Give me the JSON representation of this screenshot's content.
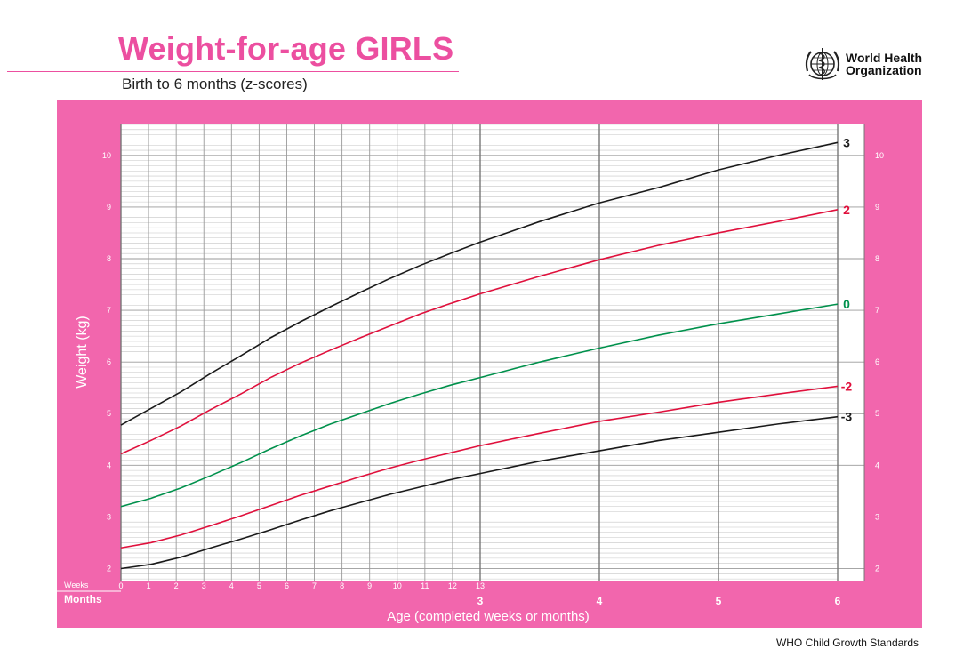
{
  "header": {
    "title": "Weight-for-age GIRLS",
    "subtitle": "Birth to 6 months (z-scores)"
  },
  "org": {
    "name_line1": "World Health",
    "name_line2": "Organization"
  },
  "footer": {
    "text": "WHO Child Growth Standards"
  },
  "colors": {
    "frame": "#f266ad",
    "accent": "#ec4fa0",
    "red": "#e0103c",
    "green": "#00914c",
    "black": "#1a1a1a"
  },
  "chart_data": {
    "type": "line",
    "ylabel": "Weight (kg)",
    "xlabel": "Age (completed weeks or months)",
    "weeks_label": "Weeks",
    "months_label": "Months",
    "ylim": [
      1.75,
      10.6
    ],
    "xlim_months": [
      0,
      6
    ],
    "yticks": [
      2,
      3,
      4,
      5,
      6,
      7,
      8,
      9,
      10
    ],
    "x_week_ticks": [
      "0",
      "1",
      "2",
      "3",
      "4",
      "5",
      "6",
      "7",
      "8",
      "9",
      "10",
      "11",
      "12",
      "13"
    ],
    "x_month_ticks": [
      "3",
      "4",
      "5",
      "6"
    ],
    "grid": true,
    "x_months": [
      0,
      0.25,
      0.5,
      0.75,
      1,
      1.25,
      1.5,
      1.75,
      2,
      2.25,
      2.5,
      2.75,
      3,
      3.5,
      4,
      4.5,
      5,
      5.5,
      6
    ],
    "series": [
      {
        "name": "3",
        "color": "#1a1a1a",
        "values": [
          4.78,
          5.1,
          5.42,
          5.78,
          6.12,
          6.47,
          6.78,
          7.07,
          7.35,
          7.62,
          7.87,
          8.1,
          8.32,
          8.72,
          9.08,
          9.38,
          9.72,
          10.0,
          10.25
        ]
      },
      {
        "name": "2",
        "color": "#e0103c",
        "values": [
          4.22,
          4.48,
          4.76,
          5.08,
          5.38,
          5.7,
          5.98,
          6.23,
          6.47,
          6.7,
          6.93,
          7.13,
          7.32,
          7.66,
          7.98,
          8.26,
          8.5,
          8.72,
          8.95
        ]
      },
      {
        "name": "0",
        "color": "#00914c",
        "values": [
          3.2,
          3.36,
          3.56,
          3.8,
          4.05,
          4.32,
          4.57,
          4.8,
          5.0,
          5.2,
          5.38,
          5.55,
          5.7,
          6.0,
          6.27,
          6.52,
          6.74,
          6.93,
          7.12
        ]
      },
      {
        "name": "-2",
        "color": "#e0103c",
        "values": [
          2.4,
          2.5,
          2.65,
          2.83,
          3.02,
          3.22,
          3.42,
          3.6,
          3.78,
          3.95,
          4.1,
          4.24,
          4.38,
          4.62,
          4.85,
          5.03,
          5.22,
          5.38,
          5.53
        ]
      },
      {
        "name": "-3",
        "color": "#1a1a1a",
        "values": [
          2.0,
          2.08,
          2.22,
          2.4,
          2.57,
          2.75,
          2.94,
          3.12,
          3.28,
          3.44,
          3.58,
          3.72,
          3.84,
          4.08,
          4.28,
          4.48,
          4.64,
          4.8,
          4.94
        ]
      }
    ]
  }
}
